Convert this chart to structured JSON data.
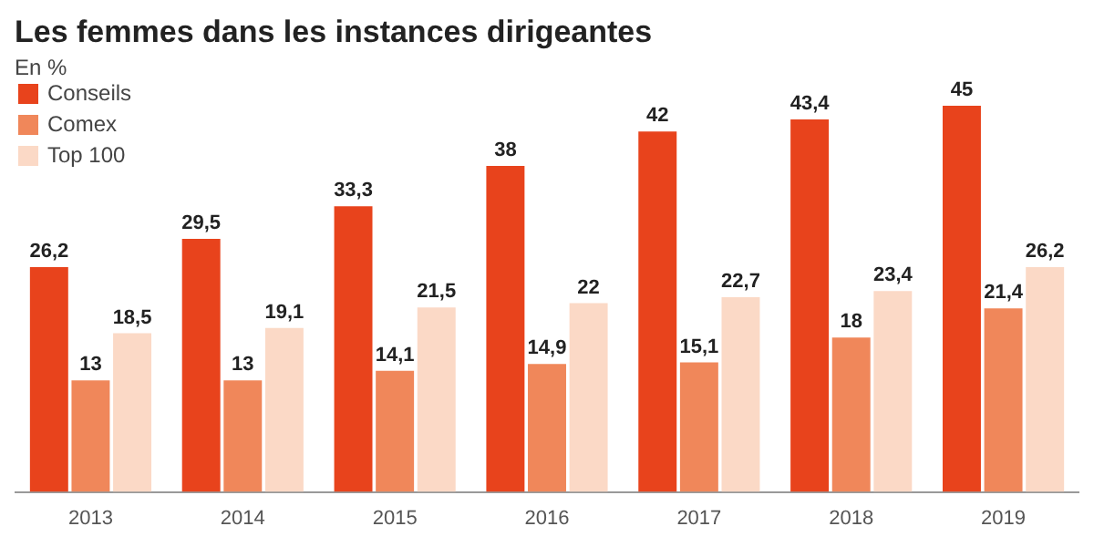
{
  "chart_data": {
    "type": "bar",
    "title": "Les femmes dans les instances dirigeantes",
    "subtitle": "En %",
    "categories": [
      "2013",
      "2014",
      "2015",
      "2016",
      "2017",
      "2018",
      "2019"
    ],
    "series": [
      {
        "name": "Conseils",
        "color": "#e8431c",
        "values": [
          26.2,
          29.5,
          33.3,
          38,
          42,
          43.4,
          45
        ],
        "value_labels": [
          "26,2",
          "29,5",
          "33,3",
          "38",
          "42",
          "43,4",
          "45"
        ]
      },
      {
        "name": "Comex",
        "color": "#f0875a",
        "values": [
          13,
          13,
          14.1,
          14.9,
          15.1,
          18,
          21.4
        ],
        "value_labels": [
          "13",
          "13",
          "14,1",
          "14,9",
          "15,1",
          "18",
          "21,4"
        ]
      },
      {
        "name": "Top 100",
        "color": "#fbd9c6",
        "values": [
          18.5,
          19.1,
          21.5,
          22,
          22.7,
          23.4,
          26.2
        ],
        "value_labels": [
          "18,5",
          "19,1",
          "21,5",
          "22",
          "22,7",
          "23,4",
          "26,2"
        ]
      }
    ],
    "legend": "top left",
    "grid": false
  }
}
